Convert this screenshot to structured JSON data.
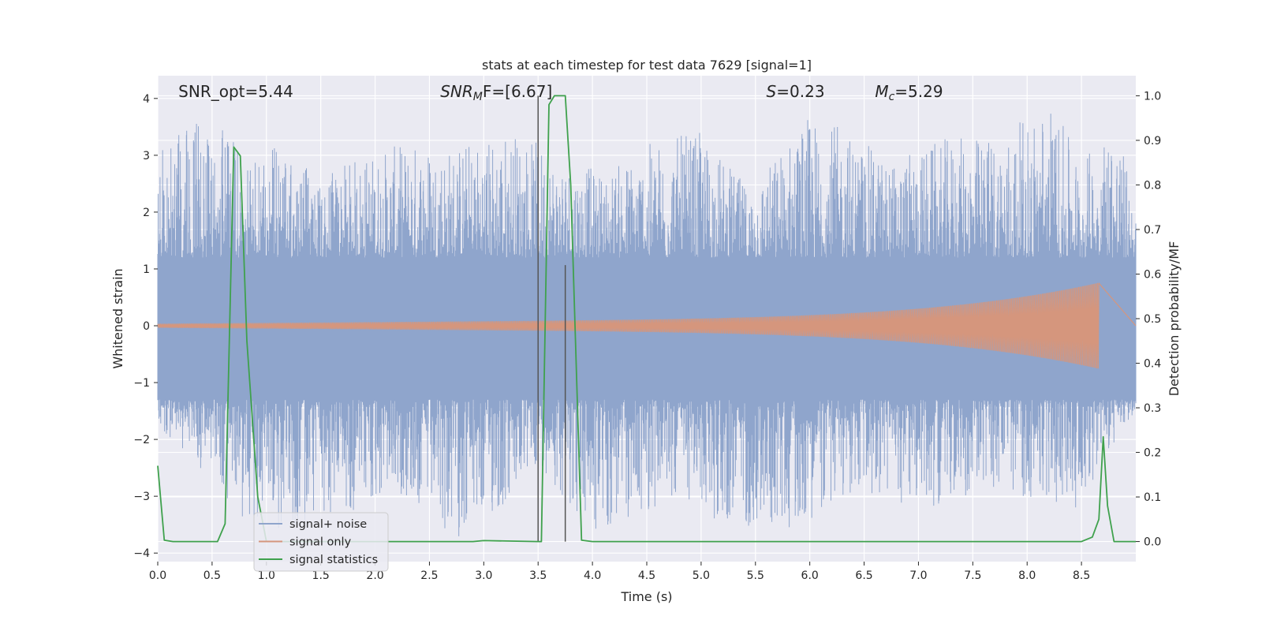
{
  "chart_data": {
    "type": "line",
    "title": "stats at each timestep for test data 7629 [signal=1]",
    "xlabel": "Time (s)",
    "ylabel": "Whitened strain",
    "y2label": "Detection probability/MF",
    "xlim": [
      0.0,
      9.0
    ],
    "ylim": [
      -4.15,
      4.4
    ],
    "y2lim": [
      -0.045,
      1.045
    ],
    "xticks": [
      "0.0",
      "0.5",
      "1.0",
      "1.5",
      "2.0",
      "2.5",
      "3.0",
      "3.5",
      "4.0",
      "4.5",
      "5.0",
      "5.5",
      "6.0",
      "6.5",
      "7.0",
      "7.5",
      "8.0",
      "8.5"
    ],
    "yticks": [
      "4",
      "3",
      "2",
      "1",
      "0",
      "−1",
      "−2",
      "−3",
      "−4"
    ],
    "y2ticks": [
      "1.0",
      "0.9",
      "0.8",
      "0.7",
      "0.6",
      "0.5",
      "0.4",
      "0.3",
      "0.2",
      "0.1",
      "0.0"
    ],
    "grid": true,
    "legend_placement": "lower-left",
    "annotations": [
      {
        "label": "SNR_opt=5.44",
        "x": 0.19,
        "y": 4.12
      },
      {
        "label": "SNR",
        "sub": "M",
        "tail": "F=[6.67]",
        "italic": true,
        "x": 2.6,
        "y": 4.12
      },
      {
        "label": "S",
        "tail": "=0.23",
        "italic": true,
        "x": 5.6,
        "y": 4.12
      },
      {
        "label": "M",
        "sub": "c",
        "tail": "=5.29",
        "italic": true,
        "x": 6.6,
        "y": 4.12
      }
    ],
    "vertical_lines": [
      {
        "x": 3.5,
        "y2_from": 0.0,
        "y2_to": 1.0
      },
      {
        "x": 3.75,
        "y2_from": 0.0,
        "y2_to": 0.62
      }
    ],
    "series": [
      {
        "name": "signal+ noise",
        "axis": "left",
        "color": "#8fa5cc",
        "envelope_peaks": [
          [
            0.0,
            3.1
          ],
          [
            0.4,
            3.7
          ],
          [
            0.55,
            2.8
          ],
          [
            0.6,
            3.5
          ],
          [
            0.82,
            2.9
          ],
          [
            1.1,
            3.2
          ],
          [
            1.5,
            2.6
          ],
          [
            1.85,
            3.0
          ],
          [
            2.45,
            3.3
          ],
          [
            2.7,
            3.2
          ],
          [
            3.25,
            3.5
          ],
          [
            3.7,
            3.0
          ],
          [
            4.1,
            2.7
          ],
          [
            4.6,
            3.3
          ],
          [
            5.0,
            3.4
          ],
          [
            5.45,
            2.4
          ],
          [
            5.95,
            3.7
          ],
          [
            6.3,
            3.5
          ],
          [
            6.75,
            2.9
          ],
          [
            7.25,
            3.3
          ],
          [
            7.8,
            3.4
          ],
          [
            8.2,
            4.0
          ],
          [
            8.5,
            2.9
          ],
          [
            8.8,
            3.7
          ],
          [
            9.0,
            2.2
          ]
        ],
        "envelope_troughs": [
          [
            0.0,
            -1.8
          ],
          [
            0.52,
            -2.8
          ],
          [
            0.98,
            -3.8
          ],
          [
            1.6,
            -3.4
          ],
          [
            2.25,
            -3.0
          ],
          [
            2.7,
            -3.8
          ],
          [
            3.2,
            -3.3
          ],
          [
            3.5,
            -2.4
          ],
          [
            4.02,
            -3.8
          ],
          [
            4.8,
            -3.0
          ],
          [
            5.15,
            -3.5
          ],
          [
            5.8,
            -3.6
          ],
          [
            6.4,
            -3.0
          ],
          [
            7.1,
            -3.2
          ],
          [
            7.6,
            -2.9
          ],
          [
            8.45,
            -3.2
          ],
          [
            9.0,
            -1.5
          ]
        ]
      },
      {
        "name": "signal only",
        "axis": "left",
        "color": "#d5967d",
        "chirp_start": 0.0,
        "chirp_end": 8.66,
        "chirp_peak_amplitude": 0.6
      },
      {
        "name": "signal statistics",
        "axis": "right",
        "color": "#3fa14d",
        "x": [
          0.0,
          0.06,
          0.14,
          0.55,
          0.62,
          0.7,
          0.76,
          0.82,
          0.92,
          1.0,
          1.1,
          2.9,
          3.0,
          3.5,
          3.53,
          3.6,
          3.65,
          3.75,
          3.8,
          3.9,
          4.0,
          8.5,
          8.6,
          8.66,
          8.7,
          8.74,
          8.8,
          9.0
        ],
        "values": [
          0.17,
          0.003,
          0.0,
          0.0,
          0.04,
          0.885,
          0.865,
          0.45,
          0.1,
          0.0,
          0.0,
          0.0,
          0.002,
          0.0,
          0.0,
          0.98,
          1.0,
          1.0,
          0.8,
          0.003,
          0.0,
          0.0,
          0.01,
          0.05,
          0.235,
          0.08,
          0.0,
          0.0
        ]
      }
    ]
  }
}
